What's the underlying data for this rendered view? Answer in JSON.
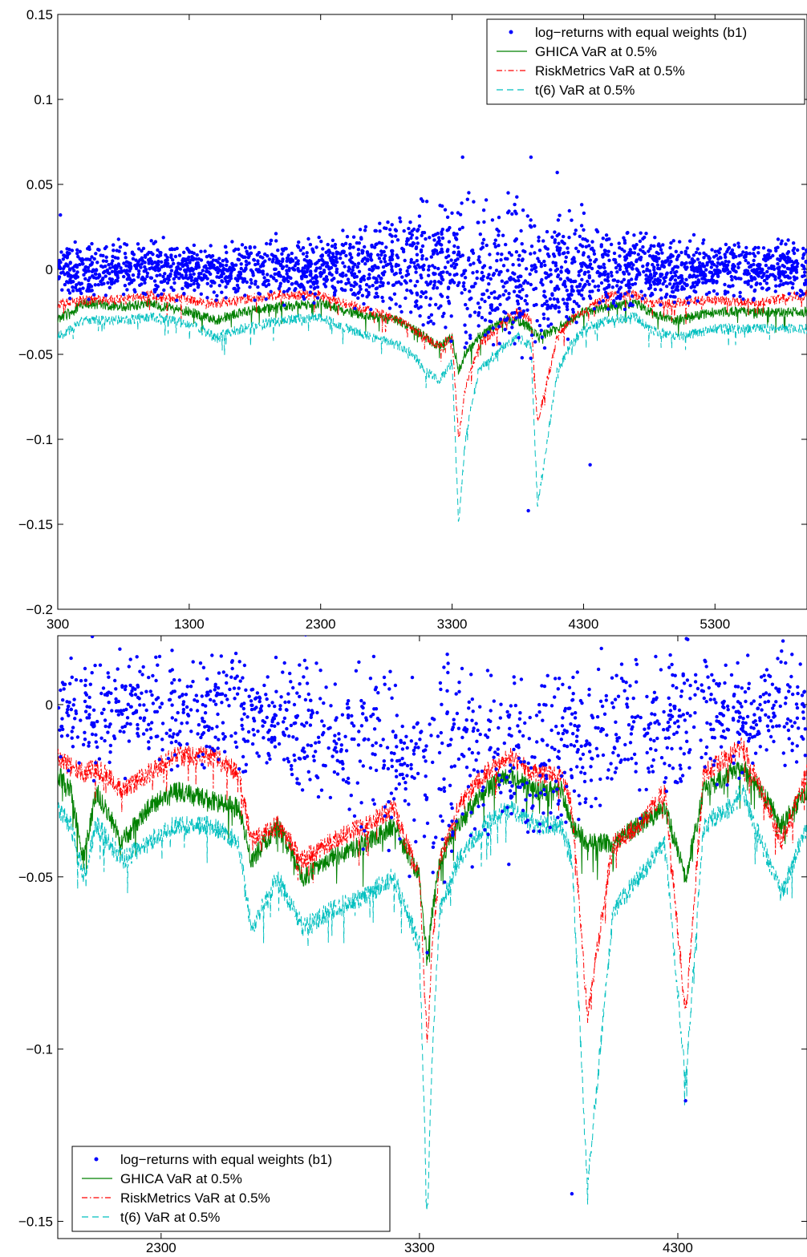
{
  "chart_data": [
    {
      "type": "line",
      "title": "",
      "xlabel": "",
      "ylabel": "",
      "xlim": [
        300,
        6000
      ],
      "ylim": [
        -0.2,
        0.15
      ],
      "xticks": [
        "300",
        "1300",
        "2300",
        "3300",
        "4300",
        "5300"
      ],
      "yticks": [
        "0.15",
        "0.1",
        "0.05",
        "0",
        "−0.05",
        "−0.1",
        "−0.15",
        "−0.2"
      ],
      "legend_position": "top-right",
      "grid": false,
      "series": [
        {
          "name": "log−returns with equal weights (b1)",
          "style": "dots",
          "color": "#0000ff",
          "envelope": {
            "x": [
              300,
              1300,
              2300,
              2900,
              3300,
              3600,
              3900,
              4300,
              4700,
              5300,
              6000
            ],
            "low": [
              -0.02,
              -0.02,
              -0.022,
              -0.035,
              -0.05,
              -0.06,
              -0.055,
              -0.04,
              -0.025,
              -0.02,
              -0.02
            ],
            "high": [
              0.02,
              0.018,
              0.022,
              0.04,
              0.05,
              0.045,
              0.05,
              0.04,
              0.025,
              0.02,
              0.02
            ]
          },
          "outliers": [
            {
              "x": 3380,
              "y": 0.066
            },
            {
              "x": 3900,
              "y": 0.066
            },
            {
              "x": 4100,
              "y": 0.057
            },
            {
              "x": 3880,
              "y": -0.142
            },
            {
              "x": 4350,
              "y": -0.115
            },
            {
              "x": 320,
              "y": 0.032
            },
            {
              "x": 1960,
              "y": 0.021
            }
          ]
        },
        {
          "name": "GHICA VaR at 0.5%",
          "style": "solid",
          "color": "#008000",
          "x": [
            300,
            400,
            500,
            800,
            1000,
            1300,
            1500,
            1700,
            2000,
            2300,
            2500,
            2700,
            2900,
            3000,
            3100,
            3200,
            3300,
            3350,
            3400,
            3500,
            3700,
            3800,
            3900,
            3950,
            4100,
            4200,
            4300,
            4500,
            4700,
            4800,
            5000,
            5300,
            5600,
            6000
          ],
          "y": [
            -0.03,
            -0.025,
            -0.02,
            -0.022,
            -0.02,
            -0.025,
            -0.03,
            -0.025,
            -0.022,
            -0.02,
            -0.025,
            -0.028,
            -0.03,
            -0.035,
            -0.04,
            -0.045,
            -0.04,
            -0.06,
            -0.05,
            -0.04,
            -0.03,
            -0.03,
            -0.035,
            -0.04,
            -0.035,
            -0.03,
            -0.025,
            -0.022,
            -0.02,
            -0.025,
            -0.03,
            -0.025,
            -0.025,
            -0.025
          ]
        },
        {
          "name": "RiskMetrics VaR at 0.5%",
          "style": "dashdot",
          "color": "#ff0000",
          "x": [
            300,
            400,
            500,
            800,
            1000,
            1300,
            1500,
            1700,
            2000,
            2300,
            2500,
            2700,
            2900,
            3000,
            3100,
            3200,
            3300,
            3350,
            3400,
            3500,
            3700,
            3800,
            3900,
            3950,
            4100,
            4200,
            4300,
            4500,
            4700,
            4800,
            5000,
            5300,
            5600,
            6000
          ],
          "y": [
            -0.02,
            -0.02,
            -0.018,
            -0.018,
            -0.015,
            -0.018,
            -0.02,
            -0.018,
            -0.015,
            -0.015,
            -0.02,
            -0.025,
            -0.03,
            -0.035,
            -0.04,
            -0.045,
            -0.04,
            -0.1,
            -0.07,
            -0.045,
            -0.03,
            -0.025,
            -0.03,
            -0.09,
            -0.04,
            -0.03,
            -0.025,
            -0.015,
            -0.015,
            -0.02,
            -0.02,
            -0.018,
            -0.02,
            -0.015
          ]
        },
        {
          "name": "t(6) VaR at 0.5%",
          "style": "dashed",
          "color": "#00bfbf",
          "x": [
            300,
            400,
            500,
            800,
            1000,
            1300,
            1500,
            1700,
            2000,
            2300,
            2500,
            2700,
            2900,
            3000,
            3100,
            3200,
            3300,
            3350,
            3400,
            3500,
            3700,
            3800,
            3900,
            3950,
            4100,
            4200,
            4300,
            4500,
            4700,
            4800,
            5000,
            5300,
            5600,
            6000
          ],
          "y": [
            -0.04,
            -0.035,
            -0.03,
            -0.03,
            -0.028,
            -0.032,
            -0.04,
            -0.035,
            -0.03,
            -0.028,
            -0.035,
            -0.04,
            -0.045,
            -0.05,
            -0.06,
            -0.065,
            -0.055,
            -0.15,
            -0.1,
            -0.06,
            -0.045,
            -0.04,
            -0.045,
            -0.14,
            -0.06,
            -0.045,
            -0.035,
            -0.03,
            -0.028,
            -0.035,
            -0.04,
            -0.035,
            -0.035,
            -0.035
          ]
        }
      ]
    },
    {
      "type": "line",
      "title": "",
      "xlabel": "",
      "ylabel": "",
      "xlim": [
        1900,
        4800
      ],
      "ylim": [
        -0.155,
        0.02
      ],
      "xticks": [
        "2300",
        "3300",
        "4300"
      ],
      "yticks": [
        "0",
        "−0.05",
        "−0.1",
        "−0.15"
      ],
      "legend_position": "bottom-left",
      "grid": false,
      "series": [
        {
          "name": "log−returns with equal weights (b1)",
          "style": "dots",
          "color": "#0000ff",
          "envelope": {
            "x": [
              1900,
              2300,
              2700,
              3000,
              3300,
              3600,
              3900,
              4200,
              4500,
              4800
            ],
            "low": [
              -0.025,
              -0.022,
              -0.028,
              -0.04,
              -0.055,
              -0.05,
              -0.045,
              -0.035,
              -0.025,
              -0.022
            ],
            "high": [
              0.02,
              0.02,
              0.02,
              0.02,
              0.02,
              0.02,
              0.02,
              0.02,
              0.02,
              0.02
            ]
          },
          "outliers": [
            {
              "x": 3330,
              "y": -0.072
            },
            {
              "x": 3890,
              "y": -0.142
            },
            {
              "x": 4330,
              "y": -0.115
            }
          ]
        },
        {
          "name": "GHICA VaR at 0.5%",
          "style": "solid",
          "color": "#008000",
          "x": [
            1900,
            1950,
            2000,
            2050,
            2150,
            2250,
            2350,
            2500,
            2600,
            2650,
            2750,
            2850,
            2950,
            3100,
            3200,
            3300,
            3330,
            3350,
            3380,
            3450,
            3550,
            3650,
            3750,
            3850,
            3890,
            3950,
            4050,
            4150,
            4250,
            4330,
            4400,
            4500,
            4550,
            4650,
            4700,
            4800
          ],
          "y": [
            -0.02,
            -0.025,
            -0.045,
            -0.025,
            -0.04,
            -0.03,
            -0.025,
            -0.028,
            -0.03,
            -0.045,
            -0.035,
            -0.05,
            -0.045,
            -0.04,
            -0.035,
            -0.05,
            -0.075,
            -0.06,
            -0.045,
            -0.035,
            -0.025,
            -0.02,
            -0.025,
            -0.025,
            -0.035,
            -0.04,
            -0.04,
            -0.035,
            -0.03,
            -0.05,
            -0.025,
            -0.02,
            -0.018,
            -0.028,
            -0.035,
            -0.025
          ]
        },
        {
          "name": "RiskMetrics VaR at 0.5%",
          "style": "dashdot",
          "color": "#ff0000",
          "x": [
            1900,
            1950,
            2000,
            2050,
            2150,
            2250,
            2350,
            2500,
            2600,
            2650,
            2750,
            2850,
            2950,
            3100,
            3200,
            3300,
            3330,
            3350,
            3380,
            3450,
            3550,
            3650,
            3750,
            3850,
            3890,
            3950,
            4050,
            4150,
            4250,
            4330,
            4400,
            4500,
            4550,
            4650,
            4700,
            4800
          ],
          "y": [
            -0.015,
            -0.018,
            -0.02,
            -0.018,
            -0.025,
            -0.02,
            -0.015,
            -0.015,
            -0.02,
            -0.04,
            -0.035,
            -0.045,
            -0.04,
            -0.035,
            -0.03,
            -0.05,
            -0.1,
            -0.07,
            -0.045,
            -0.03,
            -0.02,
            -0.015,
            -0.02,
            -0.02,
            -0.03,
            -0.09,
            -0.04,
            -0.035,
            -0.025,
            -0.09,
            -0.02,
            -0.015,
            -0.012,
            -0.03,
            -0.04,
            -0.02
          ]
        },
        {
          "name": "t(6) VaR at 0.5%",
          "style": "dashed",
          "color": "#00bfbf",
          "x": [
            1900,
            1950,
            2000,
            2050,
            2150,
            2250,
            2350,
            2500,
            2600,
            2650,
            2750,
            2850,
            2950,
            3100,
            3200,
            3300,
            3330,
            3350,
            3380,
            3450,
            3550,
            3650,
            3750,
            3850,
            3890,
            3950,
            4050,
            4150,
            4250,
            4330,
            4400,
            4500,
            4550,
            4650,
            4700,
            4800
          ],
          "y": [
            -0.03,
            -0.035,
            -0.05,
            -0.035,
            -0.045,
            -0.04,
            -0.035,
            -0.035,
            -0.04,
            -0.065,
            -0.05,
            -0.065,
            -0.06,
            -0.055,
            -0.05,
            -0.07,
            -0.15,
            -0.1,
            -0.06,
            -0.045,
            -0.035,
            -0.03,
            -0.035,
            -0.035,
            -0.045,
            -0.14,
            -0.06,
            -0.05,
            -0.04,
            -0.11,
            -0.035,
            -0.03,
            -0.025,
            -0.045,
            -0.055,
            -0.035
          ]
        }
      ]
    }
  ]
}
